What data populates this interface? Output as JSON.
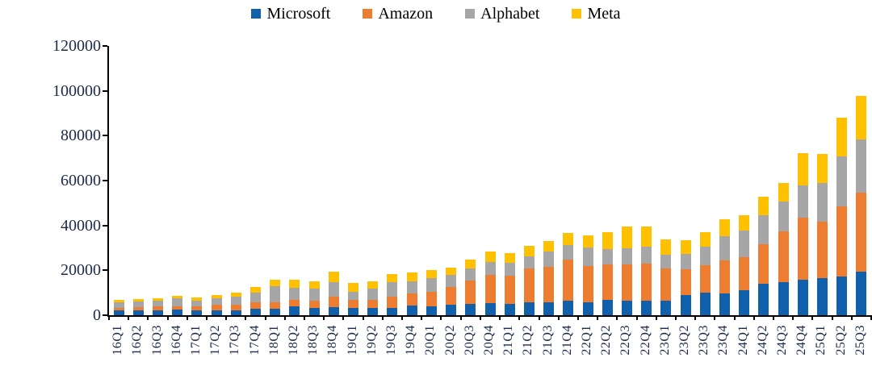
{
  "chart_data": {
    "type": "bar",
    "stacked": true,
    "title": "",
    "xlabel": "",
    "ylabel": "",
    "legend_position": "top",
    "grid": false,
    "ylim": [
      0,
      120000
    ],
    "ytick_step": 20000,
    "yticks": [
      "0",
      "20000",
      "40000",
      "60000",
      "80000",
      "100000",
      "120000"
    ],
    "categories": [
      "16Q1",
      "16Q2",
      "16Q3",
      "16Q4",
      "17Q1",
      "17Q2",
      "17Q3",
      "17Q4",
      "18Q1",
      "18Q2",
      "18Q3",
      "18Q4",
      "19Q1",
      "19Q2",
      "19Q3",
      "19Q4",
      "20Q1",
      "20Q2",
      "20Q3",
      "20Q4",
      "21Q1",
      "21Q2",
      "21Q3",
      "21Q4",
      "22Q1",
      "22Q2",
      "22Q3",
      "22Q4",
      "23Q1",
      "23Q2",
      "23Q3",
      "23Q4",
      "24Q1",
      "24Q2",
      "24Q3",
      "24Q4",
      "25Q1",
      "25Q2",
      "25Q3"
    ],
    "series": [
      {
        "name": "Microsoft",
        "color": "#1160AB",
        "values": [
          2300,
          2100,
          2200,
          2500,
          2100,
          2300,
          2100,
          2900,
          2900,
          3900,
          3200,
          3700,
          3400,
          3400,
          3400,
          4400,
          3800,
          4500,
          4900,
          5400,
          5100,
          5800,
          5900,
          6300,
          5900,
          6900,
          6300,
          6300,
          6600,
          8900,
          9900,
          9700,
          11000,
          13900,
          14900,
          15800,
          16700,
          17100,
          19400
        ]
      },
      {
        "name": "Amazon",
        "color": "#ED7D31",
        "values": [
          1100,
          1600,
          1700,
          1600,
          2000,
          2500,
          2700,
          3000,
          2700,
          3000,
          3400,
          4400,
          3400,
          3400,
          4700,
          5300,
          6800,
          8000,
          10600,
          12700,
          12500,
          15000,
          15700,
          18400,
          16200,
          15700,
          16400,
          16600,
          14200,
          11500,
          12500,
          14600,
          14900,
          17600,
          22600,
          27800,
          25000,
          31400,
          35100
        ]
      },
      {
        "name": "Alphabet",
        "color": "#A6A6A6",
        "values": [
          2400,
          2400,
          2600,
          3300,
          2500,
          2800,
          3500,
          4300,
          7300,
          5500,
          5300,
          6800,
          3700,
          5000,
          6700,
          5500,
          6000,
          5400,
          5400,
          5500,
          5900,
          5500,
          6800,
          6400,
          8100,
          6800,
          7300,
          7600,
          6300,
          6900,
          8100,
          11000,
          12000,
          13200,
          13100,
          14300,
          17200,
          22400,
          24000
        ]
      },
      {
        "name": "Meta",
        "color": "#FFC000",
        "values": [
          1100,
          1000,
          1100,
          1400,
          1300,
          1400,
          1800,
          2300,
          2800,
          3500,
          3300,
          4400,
          3800,
          3400,
          3700,
          3700,
          3700,
          3400,
          3900,
          4800,
          4300,
          4500,
          4500,
          5400,
          5500,
          7500,
          9500,
          9000,
          6800,
          6200,
          6500,
          7600,
          6700,
          8200,
          8300,
          14400,
          12900,
          17000,
          19400
        ]
      }
    ]
  },
  "axis": {
    "line_color": "#000000",
    "label_color": "#1b2a4a"
  }
}
